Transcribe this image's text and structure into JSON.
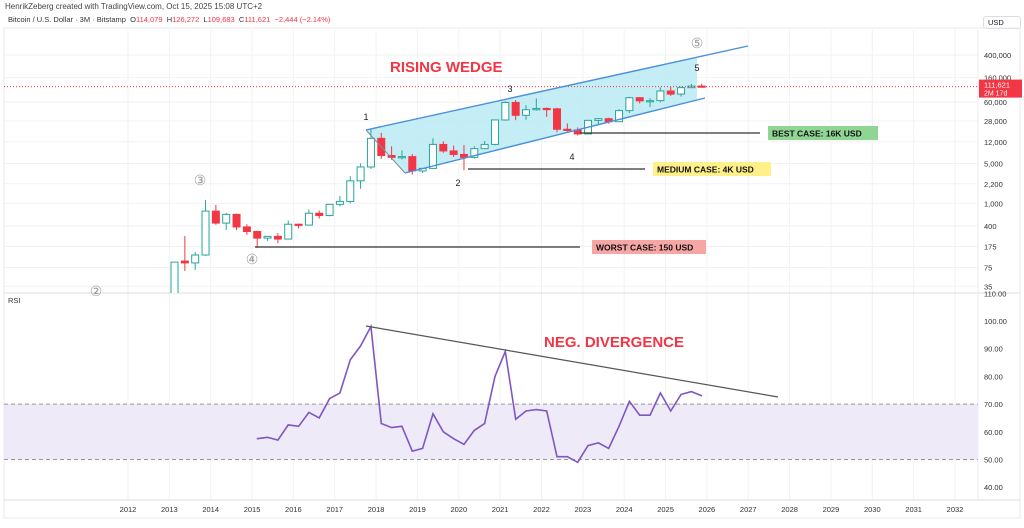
{
  "credit": "HenrikZeberg created with TradingView.com, Oct 15, 2025 15:08 UTC+2",
  "legend": {
    "symbol": "Bitcoin / U.S. Dollar · 3M · Bitstamp",
    "o_label": "O",
    "o": "114,079",
    "h_label": "H",
    "h": "126,272",
    "l_label": "L",
    "l": "109,683",
    "c_label": "C",
    "c": "111,621",
    "change": "−2,444 (−2.14%)"
  },
  "currency": "USD",
  "price_tag": {
    "price": "111,621",
    "countdown": "2M 17d"
  },
  "colors": {
    "up": "#26a69a",
    "down": "#f23645",
    "wedge_fill": "#b7e9f2",
    "wedge_line": "#4a90d9",
    "rsi": "#7e57c2",
    "rsi_band": "#efeaf8",
    "title": "#f23645"
  },
  "chart_data": [
    {
      "type": "candlestick",
      "title": "Bitcoin / U.S. Dollar · 3M",
      "scale": "log",
      "ylim": [
        35,
        700000
      ],
      "price_ticks": [
        "400,000",
        "160,000",
        "60,000",
        "28,000",
        "12,000",
        "5,000",
        "2,200",
        "1,000",
        "400",
        "175",
        "75",
        "35"
      ],
      "price_tick_values": [
        400000,
        160000,
        60000,
        28000,
        12000,
        5000,
        2200,
        1000,
        400,
        175,
        75,
        35
      ],
      "start": "2013Q1",
      "ohlc": [
        [
          13,
          95,
          12,
          93
        ],
        [
          97,
          266,
          65,
          90
        ],
        [
          90,
          140,
          68,
          124
        ],
        [
          124,
          1150,
          120,
          730
        ],
        [
          730,
          940,
          420,
          450
        ],
        [
          450,
          680,
          340,
          640
        ],
        [
          640,
          660,
          340,
          385
        ],
        [
          385,
          430,
          280,
          320
        ],
        [
          320,
          330,
          165,
          245
        ],
        [
          245,
          265,
          220,
          263
        ],
        [
          263,
          300,
          200,
          236
        ],
        [
          236,
          500,
          236,
          430
        ],
        [
          430,
          440,
          360,
          415
        ],
        [
          415,
          780,
          415,
          670
        ],
        [
          670,
          750,
          540,
          610
        ],
        [
          610,
          980,
          590,
          960
        ],
        [
          960,
          1350,
          880,
          1080
        ],
        [
          1080,
          3000,
          1000,
          2480
        ],
        [
          2480,
          5000,
          1800,
          4340
        ],
        [
          4340,
          19700,
          4000,
          13800
        ],
        [
          13800,
          17200,
          6000,
          6900
        ],
        [
          6900,
          10000,
          5800,
          6400
        ],
        [
          6400,
          8500,
          5900,
          6600
        ],
        [
          6600,
          7300,
          3200,
          3700
        ],
        [
          3700,
          4100,
          3400,
          4100
        ],
        [
          4100,
          13800,
          4000,
          10800
        ],
        [
          10800,
          12300,
          7700,
          8300
        ],
        [
          8300,
          10300,
          6500,
          7200
        ],
        [
          7200,
          10500,
          3800,
          6400
        ],
        [
          6400,
          10000,
          6100,
          9100
        ],
        [
          9100,
          12400,
          8900,
          10800
        ],
        [
          10800,
          29000,
          10400,
          29000
        ],
        [
          29000,
          61800,
          28100,
          58800
        ],
        [
          58800,
          64900,
          28800,
          35000
        ],
        [
          35000,
          52900,
          29200,
          43800
        ],
        [
          43800,
          69000,
          42000,
          46200
        ],
        [
          46200,
          48200,
          32900,
          45500
        ],
        [
          45500,
          47400,
          17600,
          19900
        ],
        [
          19900,
          25200,
          18100,
          19400
        ],
        [
          19400,
          21400,
          15500,
          16500
        ],
        [
          16500,
          29200,
          16500,
          28500
        ],
        [
          28500,
          31400,
          24800,
          30500
        ],
        [
          30500,
          31800,
          24900,
          27000
        ],
        [
          27000,
          44700,
          26600,
          42300
        ],
        [
          42300,
          73800,
          38500,
          71300
        ],
        [
          71300,
          72800,
          56500,
          62700
        ],
        [
          62700,
          70000,
          49000,
          63300
        ],
        [
          63300,
          108300,
          58900,
          93400
        ],
        [
          93400,
          109600,
          76600,
          82500
        ],
        [
          82500,
          111900,
          74500,
          107000
        ],
        [
          107000,
          124500,
          105100,
          114000
        ],
        [
          114079,
          126272,
          109683,
          111621
        ]
      ]
    },
    {
      "type": "line",
      "title": "RSI",
      "ylim": [
        35,
        112
      ],
      "y_ticks": [
        "110.00",
        "100.00",
        "90.00",
        "80.00",
        "70.00",
        "60.00",
        "50.00",
        "40.00"
      ],
      "y_tick_values": [
        110,
        100,
        90,
        80,
        70,
        60,
        50,
        40
      ],
      "band": [
        50,
        70
      ],
      "start": "2015Q1",
      "values": [
        57.5,
        58,
        57,
        62.5,
        62,
        67,
        65,
        72,
        74,
        86,
        91,
        98,
        63,
        61.5,
        62,
        53,
        54,
        66.5,
        60,
        57.5,
        55.5,
        60.5,
        63,
        80,
        89,
        64.5,
        67.5,
        68,
        67.5,
        51,
        51,
        49,
        55,
        56,
        54,
        62,
        71,
        66,
        66,
        74,
        67.5,
        73.5,
        74.5,
        73
      ]
    },
    {
      "x_ticks": [
        "2012",
        "2013",
        "2014",
        "2015",
        "2016",
        "2017",
        "2018",
        "2019",
        "2020",
        "2021",
        "2022",
        "2023",
        "2024",
        "2025",
        "2026",
        "2027",
        "2028",
        "2029",
        "2030",
        "2031",
        "2032"
      ]
    }
  ],
  "annotations": {
    "wedge_title": "RISING WEDGE",
    "divergence_title": "NEG. DIVERGENCE",
    "wave_labels": [
      "1",
      "2",
      "3",
      "4",
      "5"
    ],
    "circled": [
      "③",
      "④",
      "⑤",
      "②"
    ],
    "best": "BEST CASE: 16K USD",
    "medium": "MEDIUM CASE: 4K USD",
    "worst": "WORST CASE: 150 USD",
    "best_color": "#8fd694",
    "medium_color": "#fff08a",
    "worst_color": "#f7a6a6"
  },
  "rsi_label": "RSI"
}
